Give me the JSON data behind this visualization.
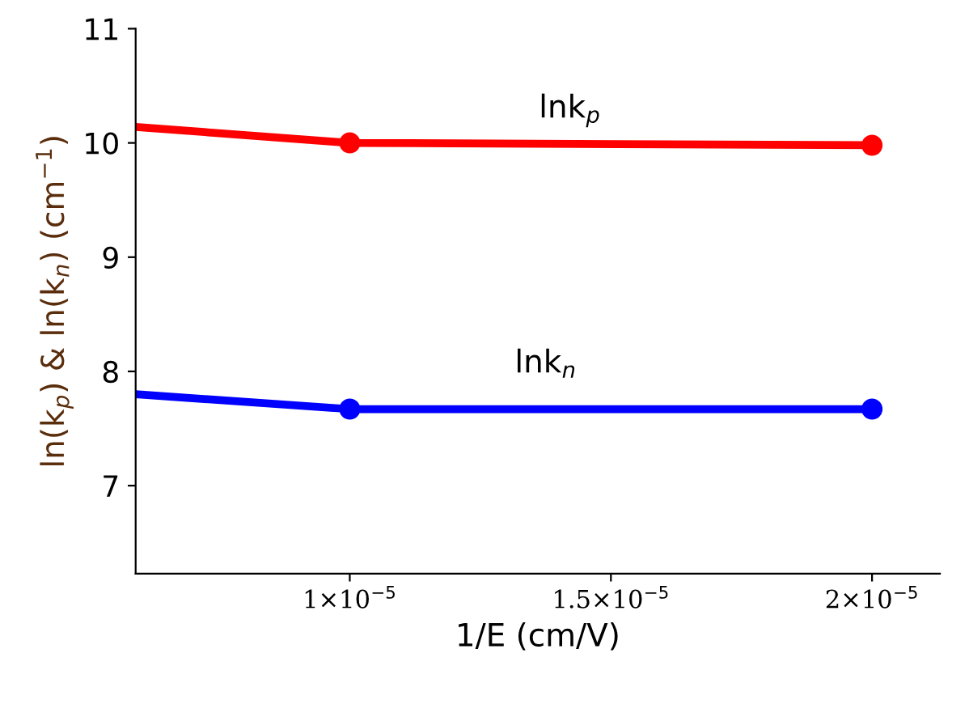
{
  "chart_data": {
    "type": "line",
    "xlabel": "1/E (cm/V)",
    "ylabel": "ln(k$_{p}$) & ln(k$_{n}$) (cm$^{−1}$)",
    "xlim": [
      5.9e-06,
      2.13e-05
    ],
    "ylim": [
      6.23,
      11
    ],
    "xticks": [
      {
        "value": 1e-05,
        "label": "1×10$^{−5}$"
      },
      {
        "value": 1.5e-05,
        "label": "1.5×10$^{−5}$"
      },
      {
        "value": 2e-05,
        "label": "2×10$^{−5}$"
      }
    ],
    "yticks": [
      7,
      8,
      9,
      10,
      11
    ],
    "grid": false,
    "line_style": "solid",
    "series": [
      {
        "color": "#ff0000",
        "x": [
          5.9e-06,
          1e-05,
          2e-05
        ],
        "values": [
          10.14,
          10.0,
          9.98
        ],
        "marker": "none"
      },
      {
        "color": "#0000ff",
        "x": [
          5.9e-06,
          1e-05,
          2e-05
        ],
        "values": [
          7.8,
          7.67,
          7.67
        ],
        "marker": "none"
      },
      {
        "type": "scatter",
        "color": "#ff0000",
        "x": [
          1e-05,
          2e-05
        ],
        "values": [
          10.0,
          9.98
        ],
        "marker": "circle"
      },
      {
        "type": "scatter",
        "color": "#0000ff",
        "x": [
          1e-05,
          2e-05
        ],
        "values": [
          7.67,
          7.67
        ],
        "marker": "circle"
      }
    ],
    "annotations": [
      "lnk$_{p}$",
      "lnk$_{n}$"
    ]
  }
}
